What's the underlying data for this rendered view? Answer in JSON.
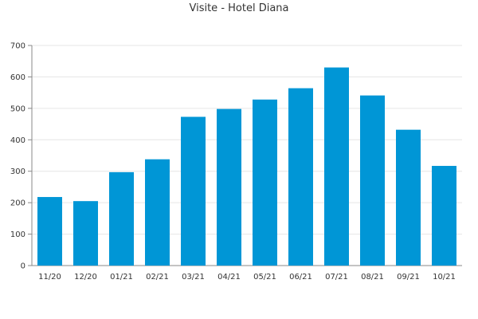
{
  "chart_data": {
    "type": "bar",
    "title": "Visite - Hotel Diana",
    "xlabel": "",
    "ylabel": "",
    "categories": [
      "11/20",
      "12/20",
      "01/21",
      "02/21",
      "03/21",
      "04/21",
      "05/21",
      "06/21",
      "07/21",
      "08/21",
      "09/21",
      "10/21"
    ],
    "values": [
      218,
      205,
      297,
      338,
      473,
      498,
      528,
      564,
      630,
      541,
      432,
      317
    ],
    "ylim": [
      0,
      700
    ],
    "yticks": [
      0,
      100,
      200,
      300,
      400,
      500,
      600,
      700
    ],
    "grid": true,
    "legend": "none",
    "bar_color": "#0096d6",
    "grid_color": "#e6e6e6",
    "axis_color": "#888888"
  }
}
